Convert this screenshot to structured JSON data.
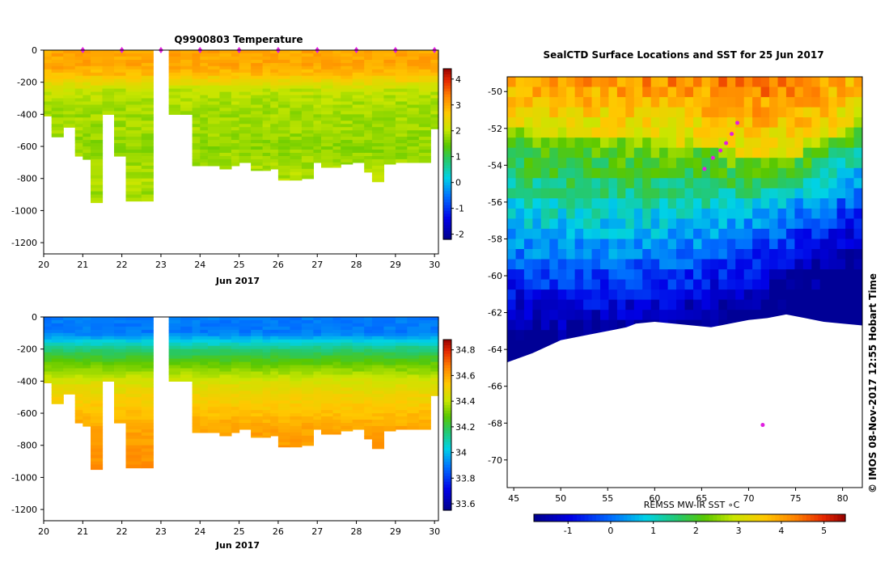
{
  "chart_data": [
    {
      "type": "heatmap",
      "panel": "temperature-section",
      "title": "Q9900803  Temperature",
      "xlabel": "Jun 2017",
      "ylabel": "",
      "xlim": [
        20,
        30.1
      ],
      "ylim": [
        -1270,
        0
      ],
      "x_ticks": [
        "20",
        "21",
        "22",
        "23",
        "24",
        "25",
        "26",
        "27",
        "28",
        "29",
        "30"
      ],
      "y_ticks": [
        "0",
        "-200",
        "-400",
        "-600",
        "-800",
        "-1000",
        "-1200"
      ],
      "colorbar_ticks": [
        "4",
        "3",
        "2",
        "1",
        "0",
        "-1",
        "-2"
      ],
      "colorbar_range": [
        -2.2,
        4.4
      ],
      "profile_markers_x": [
        21,
        22,
        23,
        24,
        25,
        26,
        27,
        28,
        29,
        30
      ],
      "profiles": {
        "x_start": [
          20.0,
          20.2,
          20.5,
          20.8,
          21.0,
          21.2,
          21.5,
          21.8,
          22.1,
          22.5,
          22.8,
          23.2,
          23.5,
          23.8,
          24.0,
          24.2,
          24.5,
          24.8,
          25.0,
          25.3,
          25.6,
          25.8,
          26.0,
          26.3,
          26.6,
          26.9,
          27.1,
          27.4,
          27.6,
          27.9,
          28.2,
          28.4,
          28.7,
          29.0,
          29.3,
          29.6,
          29.9
        ],
        "x_end": [
          20.2,
          20.5,
          20.8,
          21.0,
          21.2,
          21.5,
          21.8,
          22.1,
          22.5,
          22.8,
          23.2,
          23.5,
          23.8,
          24.0,
          24.2,
          24.5,
          24.8,
          25.0,
          25.3,
          25.6,
          25.8,
          26.0,
          26.3,
          26.6,
          26.9,
          27.1,
          27.4,
          27.6,
          27.9,
          28.2,
          28.4,
          28.7,
          29.0,
          29.3,
          29.6,
          29.9,
          30.1
        ],
        "max_depth": [
          -410,
          -540,
          -480,
          -660,
          -680,
          -950,
          -400,
          -660,
          -940,
          -940,
          0,
          -400,
          -400,
          -720,
          -720,
          -720,
          -740,
          -720,
          -700,
          -750,
          -750,
          -740,
          -810,
          -810,
          -800,
          -700,
          -730,
          -730,
          -710,
          -700,
          -760,
          -820,
          -710,
          -700,
          -700,
          -700,
          -490
        ]
      },
      "depth_levels": [
        0,
        -50,
        -100,
        -150,
        -200,
        -250,
        -300,
        -400,
        -500,
        -600,
        -700,
        -800,
        -900,
        -1000
      ],
      "level_values": [
        3.0,
        3.0,
        3.0,
        2.8,
        2.4,
        2.0,
        1.9,
        1.8,
        1.8,
        1.7,
        1.8,
        1.9,
        1.8,
        1.8
      ]
    },
    {
      "type": "heatmap",
      "panel": "salinity-section",
      "title": "",
      "xlabel": "Jun 2017",
      "ylabel": "",
      "xlim": [
        20,
        30.1
      ],
      "ylim": [
        -1270,
        0
      ],
      "x_ticks": [
        "20",
        "21",
        "22",
        "23",
        "24",
        "25",
        "26",
        "27",
        "28",
        "29",
        "30"
      ],
      "y_ticks": [
        "0",
        "-200",
        "-400",
        "-600",
        "-800",
        "-1000",
        "-1200"
      ],
      "colorbar_ticks": [
        "34.8",
        "34.6",
        "34.4",
        "34.2",
        "34",
        "33.8",
        "33.6"
      ],
      "colorbar_range": [
        33.55,
        34.88
      ],
      "depth_levels": [
        0,
        -100,
        -200,
        -300,
        -400,
        -500,
        -600,
        -700,
        -800,
        -900
      ],
      "level_values": [
        33.9,
        33.9,
        34.15,
        34.3,
        34.43,
        34.5,
        34.55,
        34.6,
        34.62,
        34.64
      ]
    },
    {
      "type": "heatmap",
      "panel": "sst-map",
      "title": "SealCTD Surface Locations and SST for 25 Jun 2017",
      "xlabel": "REMSS MW-IR SST ∘C",
      "ylabel": "",
      "xlim": [
        44.3,
        82.1
      ],
      "ylim": [
        -71.5,
        -49.2
      ],
      "x_ticks": [
        "45",
        "50",
        "55",
        "60",
        "65",
        "70",
        "75",
        "80"
      ],
      "y_ticks": [
        "-50",
        "-52",
        "-54",
        "-56",
        "-58",
        "-60",
        "-62",
        "-64",
        "-66",
        "-68",
        "-70"
      ],
      "colorbar_ticks": [
        "-1",
        "0",
        "1",
        "2",
        "3",
        "4",
        "5"
      ],
      "colorbar_range": [
        -1.8,
        5.5
      ],
      "sst_front_lat_by_lon": {
        "lon": [
          45,
          50,
          55,
          60,
          65,
          70,
          75,
          80,
          82
        ],
        "warm_lat": [
          -52.0,
          -52.5,
          -52.6,
          -52.8,
          -53.0,
          -53.8,
          -53.5,
          -52.2,
          -51.5
        ],
        "cold_lat": [
          -58.5,
          -59.0,
          -58.8,
          -58.7,
          -58.3,
          -57.5,
          -56.5,
          -55.5,
          -55.0
        ]
      },
      "ice_edge": {
        "lon": [
          44.3,
          47,
          50,
          53,
          55,
          57,
          58,
          60,
          62,
          64,
          66,
          68,
          70,
          72,
          74,
          76,
          78,
          80,
          82.1
        ],
        "lat": [
          -64.7,
          -64.2,
          -63.5,
          -63.2,
          -63.0,
          -62.8,
          -62.6,
          -62.5,
          -62.6,
          -62.7,
          -62.8,
          -62.6,
          -62.4,
          -62.3,
          -62.1,
          -62.3,
          -62.5,
          -62.6,
          -62.7
        ]
      },
      "track_points": [
        {
          "lon": 65.3,
          "lat": -54.2
        },
        {
          "lon": 66.2,
          "lat": -53.6
        },
        {
          "lon": 67.0,
          "lat": -53.2
        },
        {
          "lon": 67.6,
          "lat": -52.8
        },
        {
          "lon": 68.2,
          "lat": -52.3
        },
        {
          "lon": 68.8,
          "lat": -51.7
        },
        {
          "lon": 71.5,
          "lat": -68.1
        }
      ]
    }
  ],
  "side_credit": "©  IMOS 08-Nov-2017 12:55 Hobart Time",
  "colors": {
    "track_marker": "#e020e0",
    "land": "#ffffff",
    "frame": "#000000"
  }
}
